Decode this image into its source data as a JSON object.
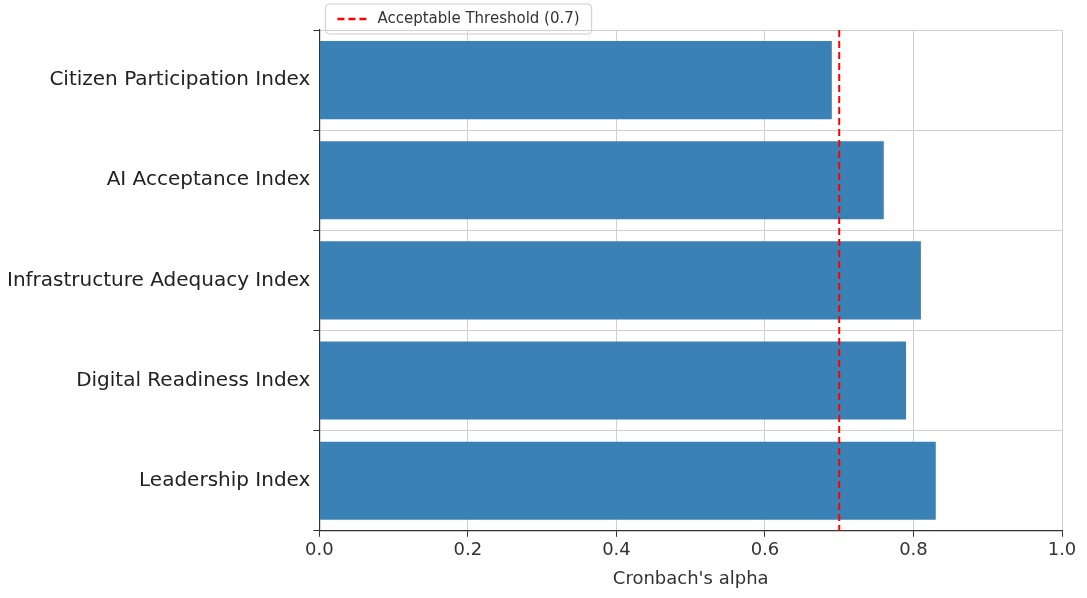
{
  "chart_data": {
    "type": "bar",
    "orientation": "horizontal",
    "xlabel": "Cronbach's alpha",
    "categories": [
      "Citizen Participation Index",
      "AI Acceptance Index",
      "Infrastructure Adequacy Index",
      "Digital Readiness Index",
      "Leadership Index"
    ],
    "values": [
      0.69,
      0.76,
      0.81,
      0.79,
      0.83
    ],
    "color": "#3a81b5",
    "xlim": [
      0,
      1
    ],
    "xticks": [
      {
        "value": 0,
        "label": "0.0"
      },
      0.2,
      0.4,
      0.6,
      0.8,
      {
        "value": 1,
        "label": "1.0"
      }
    ],
    "ref_lines": [
      {
        "axis": "x",
        "value": 0.7,
        "label": "Acceptable Threshold (0.7)",
        "color": "#ff0000",
        "line_style": "dashed"
      }
    ],
    "grid": true,
    "legend": "top left"
  }
}
